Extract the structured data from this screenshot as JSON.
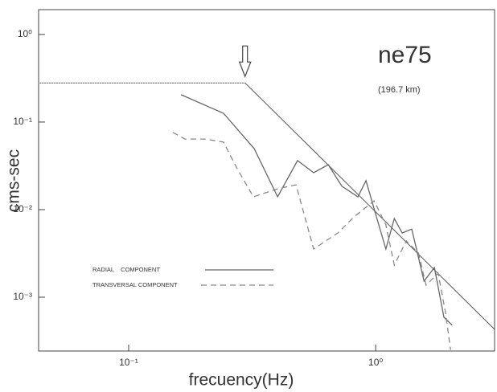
{
  "chart_data": {
    "type": "line",
    "xlabel": "frecuency(Hz)",
    "ylabel": "cms-sec",
    "xscale": "log",
    "yscale": "log",
    "xlim": [
      0.0432,
      3.03
    ],
    "ylim": [
      0.000243,
      1.92
    ],
    "xticks": [
      {
        "value": 0.1,
        "label": "10⁻¹"
      },
      {
        "value": 1,
        "label": "10⁰"
      }
    ],
    "yticks": [
      {
        "value": 0.001,
        "label": "10⁻³"
      },
      {
        "value": 0.01,
        "label": "10⁻²"
      },
      {
        "value": 0.1,
        "label": "10⁻¹"
      },
      {
        "value": 1,
        "label": "10⁰"
      }
    ],
    "annotations": [
      "ne75",
      "(196.7 km)"
    ],
    "reference_line": {
      "x": [
        0.0432,
        0.296,
        3.03
      ],
      "values": [
        0.28,
        0.28,
        0.00043
      ],
      "color": "#555555"
    },
    "series": [
      {
        "name": "RADIAL    COMPONENT",
        "color": "#666666",
        "dash": false,
        "x": [
          0.163,
          0.242,
          0.322,
          0.401,
          0.483,
          0.561,
          0.643,
          0.73,
          0.847,
          0.914,
          0.986,
          1.1,
          1.19,
          1.28,
          1.4,
          1.57,
          1.73,
          1.89,
          2.04
        ],
        "values": [
          0.205,
          0.126,
          0.0498,
          0.014,
          0.0363,
          0.0264,
          0.0326,
          0.0185,
          0.014,
          0.0214,
          0.0102,
          0.00355,
          0.0079,
          0.00542,
          0.006,
          0.00153,
          0.00218,
          0.00059,
          0.00048
        ]
      },
      {
        "name": "TRANSVERSAL COMPONENT",
        "color": "#888888",
        "dash": true,
        "x": [
          0.151,
          0.169,
          0.204,
          0.242,
          0.275,
          0.32,
          0.401,
          0.476,
          0.561,
          0.703,
          0.817,
          0.986,
          1.1,
          1.19,
          1.33,
          1.49,
          1.6,
          1.79,
          1.92,
          2.01
        ],
        "values": [
          0.076,
          0.064,
          0.064,
          0.059,
          0.0294,
          0.014,
          0.0173,
          0.0192,
          0.00355,
          0.00542,
          0.00827,
          0.0126,
          0.0067,
          0.00233,
          0.00439,
          0.0032,
          0.00137,
          0.00188,
          0.00066,
          0.00025
        ]
      }
    ]
  }
}
